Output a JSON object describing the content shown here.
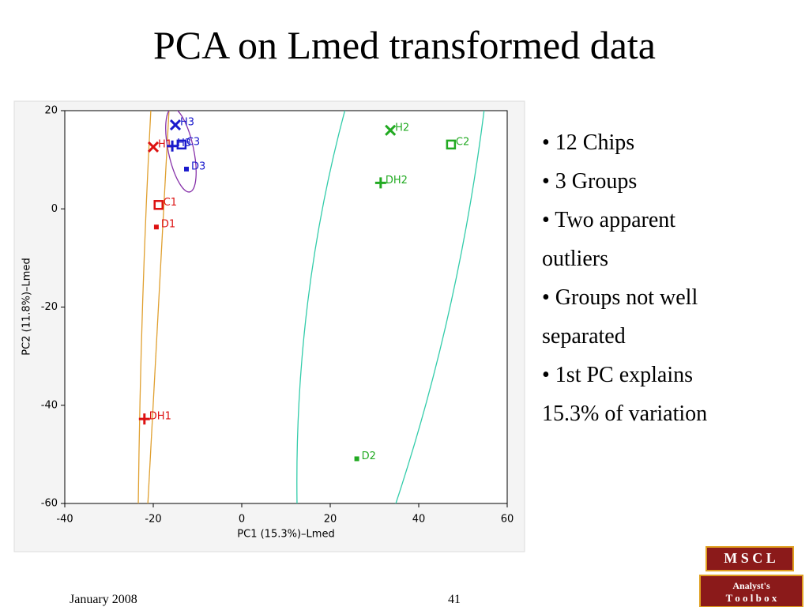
{
  "slide": {
    "title": "PCA on Lmed transformed data",
    "bullets": [
      "• 12 Chips",
      "• 3 Groups",
      "• Two apparent",
      "outliers",
      "• Groups not well",
      "separated",
      "• 1st PC explains",
      "15.3% of variation"
    ],
    "footer_date": "January 2008",
    "page_number": "41",
    "logo": [
      "M S C L",
      "Analyst's",
      "T o o l b o x"
    ]
  },
  "chart_data": {
    "type": "scatter",
    "x_label": "PC1 (15.3%)–Lmed",
    "y_label": "PC2 (11.8%)–Lmed",
    "xlim": [
      -40,
      60
    ],
    "ylim": [
      -60,
      20
    ],
    "xticks": [
      -40,
      -20,
      0,
      20,
      40,
      60
    ],
    "yticks": [
      -60,
      -40,
      -20,
      0,
      20
    ],
    "points": [
      {
        "label": "H1",
        "x": -20,
        "y": 12.6,
        "color": "#dd1111",
        "marker": "x"
      },
      {
        "label": "C1",
        "x": -18.8,
        "y": 0.8,
        "color": "#dd1111",
        "marker": "square"
      },
      {
        "label": "D1",
        "x": -19.3,
        "y": -3.7,
        "color": "#dd1111",
        "marker": "dot"
      },
      {
        "label": "DH1",
        "x": -22,
        "y": -42.8,
        "color": "#dd1111",
        "marker": "plus"
      },
      {
        "label": "H3",
        "x": -15,
        "y": 17.1,
        "color": "#1a1acc",
        "marker": "x"
      },
      {
        "label": "H3",
        "x": -15.7,
        "y": 12.8,
        "color": "#1a1acc",
        "marker": "plus"
      },
      {
        "label": "C3",
        "x": -13.6,
        "y": 13.1,
        "color": "#1a1acc",
        "marker": "square"
      },
      {
        "label": "D3",
        "x": -12.5,
        "y": 8.1,
        "color": "#1a1acc",
        "marker": "dot"
      },
      {
        "label": "H2",
        "x": 33.6,
        "y": 16,
        "color": "#22aa22",
        "marker": "x"
      },
      {
        "label": "C2",
        "x": 47.3,
        "y": 13.1,
        "color": "#22aa22",
        "marker": "square"
      },
      {
        "label": "DH2",
        "x": 31.4,
        "y": 5.3,
        "color": "#22aa22",
        "marker": "plus"
      },
      {
        "label": "D2",
        "x": 26,
        "y": -50.9,
        "color": "#22aa22",
        "marker": "dot"
      }
    ]
  }
}
